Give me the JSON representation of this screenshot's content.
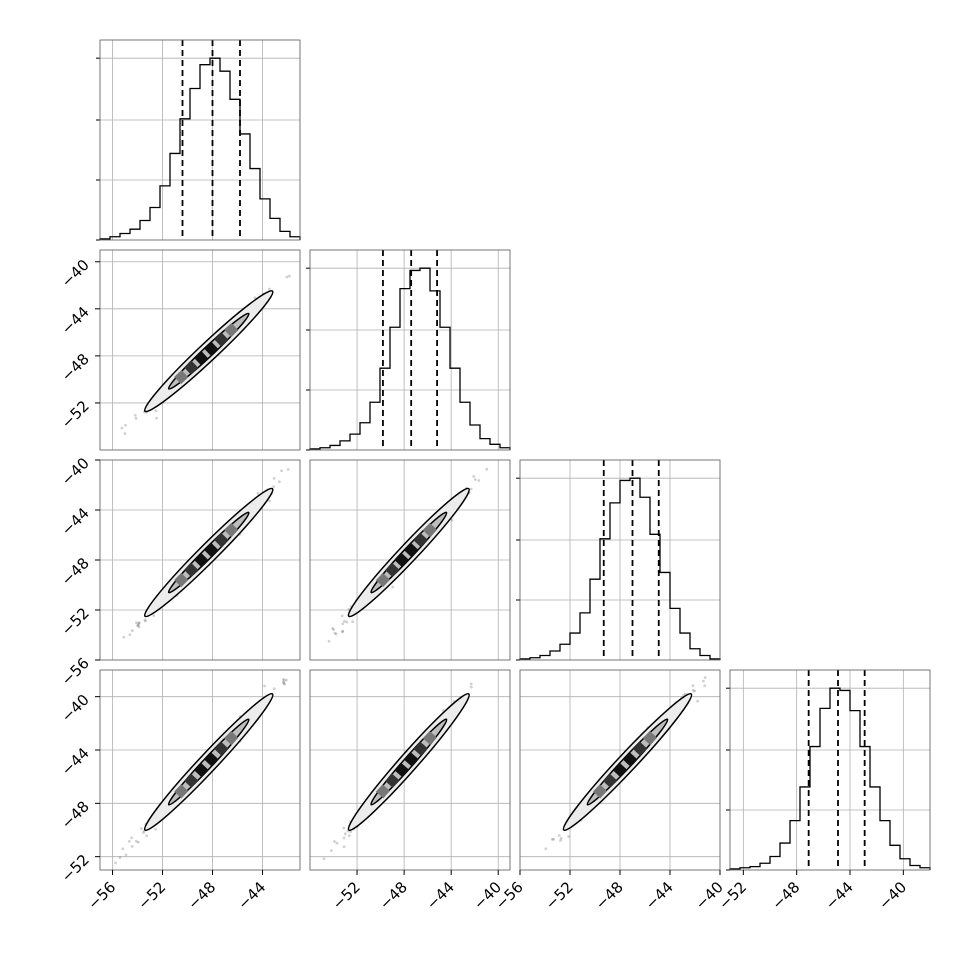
{
  "chart_data": {
    "type": "corner",
    "n_params": 4,
    "grid": true,
    "quantile_lines": "dashed",
    "parameters": [
      {
        "range": [
          -57,
          -41
        ],
        "ticks": [
          -56,
          -52,
          -48,
          -44
        ],
        "tick_labels": [
          "−56",
          "−52",
          "−48",
          "−44"
        ],
        "mean": -48.3,
        "sigma": 2.1,
        "quantiles": [
          -50.4,
          -48.0,
          -45.8
        ]
      },
      {
        "range": [
          -56,
          -39
        ],
        "ticks": [
          -52,
          -48,
          -44,
          -40
        ],
        "tick_labels": [
          "−52",
          "−48",
          "−44",
          "−40"
        ],
        "mean": -47.6,
        "sigma": 2.2,
        "quantiles": [
          -49.8,
          -47.4,
          -45.2
        ]
      },
      {
        "range": [
          -56,
          -40
        ],
        "ticks": [
          -56,
          -52,
          -48,
          -44,
          -40
        ],
        "tick_labels": [
          "−56",
          "−52",
          "−48",
          "−44",
          "−40"
        ],
        "mean": -47.4,
        "sigma": 2.0,
        "quantiles": [
          -49.3,
          -47.0,
          -44.9
        ]
      },
      {
        "range": [
          -53,
          -38
        ],
        "ticks": [
          -52,
          -48,
          -44,
          -40
        ],
        "tick_labels": [
          "−52",
          "−48",
          "−44",
          "−40"
        ],
        "mean": -44.9,
        "sigma": 2.0,
        "quantiles": [
          -47.1,
          -44.9,
          -42.9
        ]
      }
    ],
    "histograms": [
      {
        "param": 0,
        "bins_left": -57,
        "bin_width": 0.8,
        "counts": [
          1,
          3,
          6,
          10,
          18,
          30,
          50,
          80,
          112,
          140,
          162,
          168,
          156,
          130,
          98,
          66,
          38,
          20,
          8,
          3
        ]
      },
      {
        "param": 1,
        "bins_left": -56,
        "bin_width": 0.85,
        "counts": [
          1,
          2,
          4,
          8,
          14,
          24,
          42,
          72,
          108,
          142,
          158,
          160,
          140,
          108,
          72,
          42,
          22,
          10,
          5,
          2
        ]
      },
      {
        "param": 2,
        "bins_left": -56,
        "bin_width": 0.8,
        "counts": [
          1,
          2,
          4,
          8,
          14,
          24,
          42,
          72,
          108,
          140,
          160,
          162,
          145,
          112,
          78,
          46,
          24,
          10,
          4,
          1
        ]
      },
      {
        "param": 3,
        "bins_left": -53,
        "bin_width": 0.75,
        "counts": [
          1,
          2,
          3,
          6,
          12,
          24,
          44,
          74,
          110,
          144,
          162,
          160,
          142,
          110,
          74,
          44,
          22,
          10,
          4,
          2
        ]
      }
    ],
    "scatter_density": "strong positive correlation between all parameter pairs (rho ~ 0.99)",
    "contour_levels": [
      0.39,
      0.86
    ]
  }
}
